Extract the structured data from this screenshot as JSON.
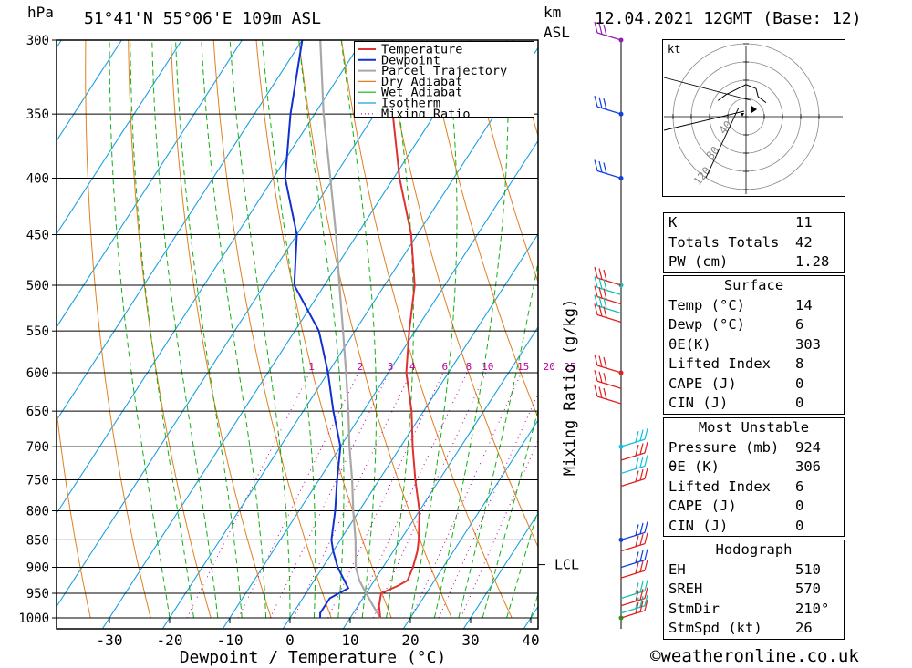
{
  "header": {
    "hpa_unit": "hPa",
    "location": "51°41'N 55°06'E 109m ASL",
    "km_label": "km",
    "asl_label": "ASL",
    "datetime": "12.04.2021 12GMT (Base: 12)"
  },
  "chart_data": {
    "type": "skew-t",
    "xlabel": "Dewpoint / Temperature (°C)",
    "ylabel_left": "hPa",
    "ylabel_right": "Mixing Ratio (g/kg)",
    "pressure_levels": [
      300,
      350,
      400,
      450,
      500,
      550,
      600,
      650,
      700,
      750,
      800,
      850,
      900,
      950,
      1000
    ],
    "x_ticks": [
      -30,
      -20,
      -10,
      0,
      10,
      20,
      30,
      40
    ],
    "xlim": [
      -40,
      40
    ],
    "lcl_label": "LCL",
    "lcl_pressure": 895,
    "mixing_ratio_labels": [
      "1",
      "2",
      "3",
      "4",
      "6",
      "8",
      "10",
      "15",
      "20",
      "25"
    ],
    "mixing_ratio_values": [
      1,
      2,
      3,
      4,
      6,
      8,
      10,
      15,
      20,
      25
    ],
    "legend": [
      "Temperature",
      "Dewpoint",
      "Parcel Trajectory",
      "Dry Adiabat",
      "Wet Adiabat",
      "Isotherm",
      "Mixing Ratio"
    ],
    "colors": {
      "temperature": "#e03030",
      "dewpoint": "#1030d0",
      "parcel": "#a8a8a8",
      "dry_adiabat": "#e08020",
      "wet_adiabat": "#10b010",
      "isotherm": "#1aa0e0",
      "mixing_ratio": "#c000a0"
    },
    "temperature_profile": [
      [
        1000,
        15
      ],
      [
        975,
        13.5
      ],
      [
        950,
        12.5
      ],
      [
        935,
        14.5
      ],
      [
        925,
        15.5
      ],
      [
        900,
        15
      ],
      [
        870,
        14
      ],
      [
        850,
        13
      ],
      [
        800,
        10
      ],
      [
        750,
        6
      ],
      [
        700,
        2
      ],
      [
        650,
        -2
      ],
      [
        600,
        -7
      ],
      [
        550,
        -11
      ],
      [
        500,
        -15
      ],
      [
        450,
        -21
      ],
      [
        400,
        -29
      ],
      [
        350,
        -37
      ],
      [
        300,
        -45
      ]
    ],
    "dewpoint_profile": [
      [
        1000,
        5
      ],
      [
        990,
        4.5
      ],
      [
        960,
        4.5
      ],
      [
        940,
        6.5
      ],
      [
        925,
        5
      ],
      [
        900,
        2.5
      ],
      [
        870,
        0
      ],
      [
        850,
        -1.5
      ],
      [
        800,
        -4
      ],
      [
        750,
        -7
      ],
      [
        700,
        -10
      ],
      [
        650,
        -15
      ],
      [
        600,
        -20
      ],
      [
        550,
        -26
      ],
      [
        500,
        -35
      ],
      [
        450,
        -40
      ],
      [
        400,
        -48
      ],
      [
        350,
        -54
      ],
      [
        300,
        -60
      ]
    ],
    "parcel_profile": [
      [
        1000,
        15
      ],
      [
        975,
        12.5
      ],
      [
        950,
        10
      ],
      [
        925,
        7.5
      ],
      [
        900,
        5.5
      ],
      [
        850,
        2.5
      ],
      [
        800,
        -1
      ],
      [
        750,
        -4.5
      ],
      [
        700,
        -8.5
      ],
      [
        650,
        -12.5
      ],
      [
        600,
        -17
      ],
      [
        550,
        -22
      ],
      [
        500,
        -27.5
      ],
      [
        450,
        -33.5
      ],
      [
        400,
        -40.5
      ],
      [
        350,
        -48.5
      ],
      [
        300,
        -57
      ]
    ],
    "hodograph": {
      "unit": "kt",
      "ring_labels": [
        "120",
        "80",
        "40"
      ],
      "trace": [
        [
          -14,
          8
        ],
        [
          -10,
          11
        ],
        [
          -4,
          14
        ],
        [
          0,
          16
        ],
        [
          5,
          14
        ],
        [
          6,
          10
        ],
        [
          10,
          7
        ]
      ]
    },
    "wind_barbs_pressure": [
      300,
      350,
      400,
      500,
      510,
      520,
      530,
      540,
      600,
      620,
      640,
      700,
      720,
      740,
      760,
      850,
      870,
      900,
      920,
      960,
      975,
      990,
      1000
    ]
  },
  "indices": {
    "rows": [
      {
        "label": "K",
        "value": "11"
      },
      {
        "label": "Totals Totals",
        "value": "42"
      },
      {
        "label": "PW (cm)",
        "value": "1.28"
      }
    ]
  },
  "surface": {
    "title": "Surface",
    "rows": [
      {
        "label": "Temp (°C)",
        "value": "14"
      },
      {
        "label": "Dewp (°C)",
        "value": "6"
      },
      {
        "label": "θE(K)",
        "value": "303"
      },
      {
        "label": "Lifted Index",
        "value": "8"
      },
      {
        "label": "CAPE (J)",
        "value": "0"
      },
      {
        "label": "CIN (J)",
        "value": "0"
      }
    ]
  },
  "most_unstable": {
    "title": "Most Unstable",
    "rows": [
      {
        "label": "Pressure (mb)",
        "value": "924"
      },
      {
        "label": "θE (K)",
        "value": "306"
      },
      {
        "label": "Lifted Index",
        "value": "6"
      },
      {
        "label": "CAPE (J)",
        "value": "0"
      },
      {
        "label": "CIN (J)",
        "value": "0"
      }
    ]
  },
  "hodograph_table": {
    "title": "Hodograph",
    "rows": [
      {
        "label": "EH",
        "value": "510"
      },
      {
        "label": "SREH",
        "value": "570"
      },
      {
        "label": "StmDir",
        "value": "210°"
      },
      {
        "label": "StmSpd (kt)",
        "value": "26"
      }
    ]
  },
  "credit": "©weatheronline.co.uk"
}
